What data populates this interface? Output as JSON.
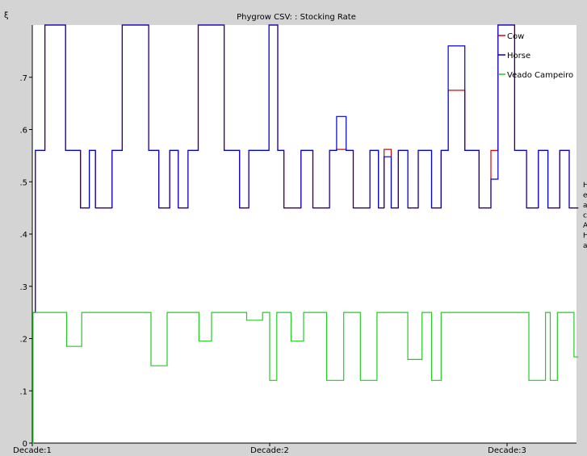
{
  "window": {
    "title": "Phygrow CSV: : Stocking Rate",
    "corner_glyph": "ξ",
    "side_letters": [
      "H",
      "e",
      "a",
      "c",
      "A",
      "H",
      "a"
    ]
  },
  "chart_data": {
    "type": "line",
    "step": true,
    "title": "Phygrow CSV: : Stocking Rate",
    "xlabel": "",
    "ylabel": "",
    "xlim": [
      0,
      2.3
    ],
    "ylim": [
      0,
      0.8
    ],
    "y_ticks": [
      {
        "value": 0,
        "label": "0"
      },
      {
        "value": 0.1,
        "label": ".1"
      },
      {
        "value": 0.2,
        "label": ".2"
      },
      {
        "value": 0.3,
        "label": ".3"
      },
      {
        "value": 0.4,
        "label": ".4"
      },
      {
        "value": 0.5,
        "label": ".5"
      },
      {
        "value": 0.6,
        "label": ".6"
      },
      {
        "value": 0.7,
        "label": ".7"
      }
    ],
    "x_ticks": [
      {
        "value": 0,
        "label": "Decade:1"
      },
      {
        "value": 1,
        "label": "Decade:2"
      },
      {
        "value": 2,
        "label": "Decade:3"
      }
    ],
    "grid": false,
    "legend_position": "top-right",
    "series": [
      {
        "name": "Cow",
        "color": "#dd0000",
        "x": [
          0.0,
          0.013,
          0.053,
          0.14,
          0.203,
          0.24,
          0.266,
          0.336,
          0.379,
          0.49,
          0.533,
          0.579,
          0.615,
          0.656,
          0.699,
          0.808,
          0.873,
          0.912,
          0.997,
          1.034,
          1.06,
          1.132,
          1.182,
          1.252,
          1.282,
          1.322,
          1.352,
          1.422,
          1.458,
          1.482,
          1.512,
          1.542,
          1.582,
          1.626,
          1.682,
          1.722,
          1.752,
          1.822,
          1.882,
          1.932,
          1.962,
          2.032,
          2.082,
          2.132,
          2.172,
          2.222,
          2.262,
          2.3
        ],
        "y": [
          0.25,
          0.56,
          0.8,
          0.56,
          0.45,
          0.56,
          0.45,
          0.56,
          0.8,
          0.56,
          0.45,
          0.56,
          0.45,
          0.56,
          0.8,
          0.56,
          0.45,
          0.56,
          0.8,
          0.56,
          0.45,
          0.56,
          0.45,
          0.56,
          0.562,
          0.56,
          0.45,
          0.56,
          0.45,
          0.562,
          0.45,
          0.56,
          0.45,
          0.56,
          0.45,
          0.56,
          0.675,
          0.56,
          0.45,
          0.56,
          0.8,
          0.56,
          0.45,
          0.56,
          0.45,
          0.56,
          0.45,
          0.45
        ]
      },
      {
        "name": "Horse",
        "color": "#0000cc",
        "x": [
          0.0,
          0.013,
          0.053,
          0.14,
          0.203,
          0.24,
          0.266,
          0.336,
          0.379,
          0.49,
          0.533,
          0.579,
          0.615,
          0.656,
          0.699,
          0.808,
          0.873,
          0.912,
          0.997,
          1.034,
          1.06,
          1.132,
          1.182,
          1.252,
          1.282,
          1.322,
          1.352,
          1.422,
          1.458,
          1.482,
          1.512,
          1.542,
          1.582,
          1.626,
          1.682,
          1.722,
          1.752,
          1.822,
          1.882,
          1.932,
          1.962,
          2.032,
          2.082,
          2.132,
          2.172,
          2.222,
          2.262,
          2.3
        ],
        "y": [
          0.25,
          0.56,
          0.8,
          0.56,
          0.45,
          0.56,
          0.45,
          0.56,
          0.8,
          0.56,
          0.45,
          0.56,
          0.45,
          0.56,
          0.8,
          0.56,
          0.45,
          0.56,
          0.8,
          0.56,
          0.45,
          0.56,
          0.45,
          0.56,
          0.625,
          0.56,
          0.45,
          0.56,
          0.45,
          0.548,
          0.45,
          0.56,
          0.45,
          0.56,
          0.45,
          0.56,
          0.76,
          0.56,
          0.45,
          0.505,
          0.8,
          0.56,
          0.45,
          0.56,
          0.45,
          0.56,
          0.45,
          0.45
        ]
      },
      {
        "name": "Veado Campeiro",
        "color": "#22cc22",
        "x": [
          0.0,
          0.003,
          0.145,
          0.208,
          0.5,
          0.568,
          0.702,
          0.755,
          0.903,
          0.97,
          1.0,
          1.03,
          1.09,
          1.143,
          1.24,
          1.312,
          1.382,
          1.452,
          1.582,
          1.642,
          1.682,
          1.722,
          2.092,
          2.162,
          2.182,
          2.212,
          2.282,
          2.3
        ],
        "y": [
          0,
          0.25,
          0.185,
          0.25,
          0.148,
          0.25,
          0.195,
          0.25,
          0.235,
          0.25,
          0.12,
          0.25,
          0.195,
          0.25,
          0.12,
          0.25,
          0.12,
          0.25,
          0.16,
          0.25,
          0.12,
          0.25,
          0.12,
          0.25,
          0.12,
          0.25,
          0.165,
          0.165
        ]
      }
    ]
  }
}
